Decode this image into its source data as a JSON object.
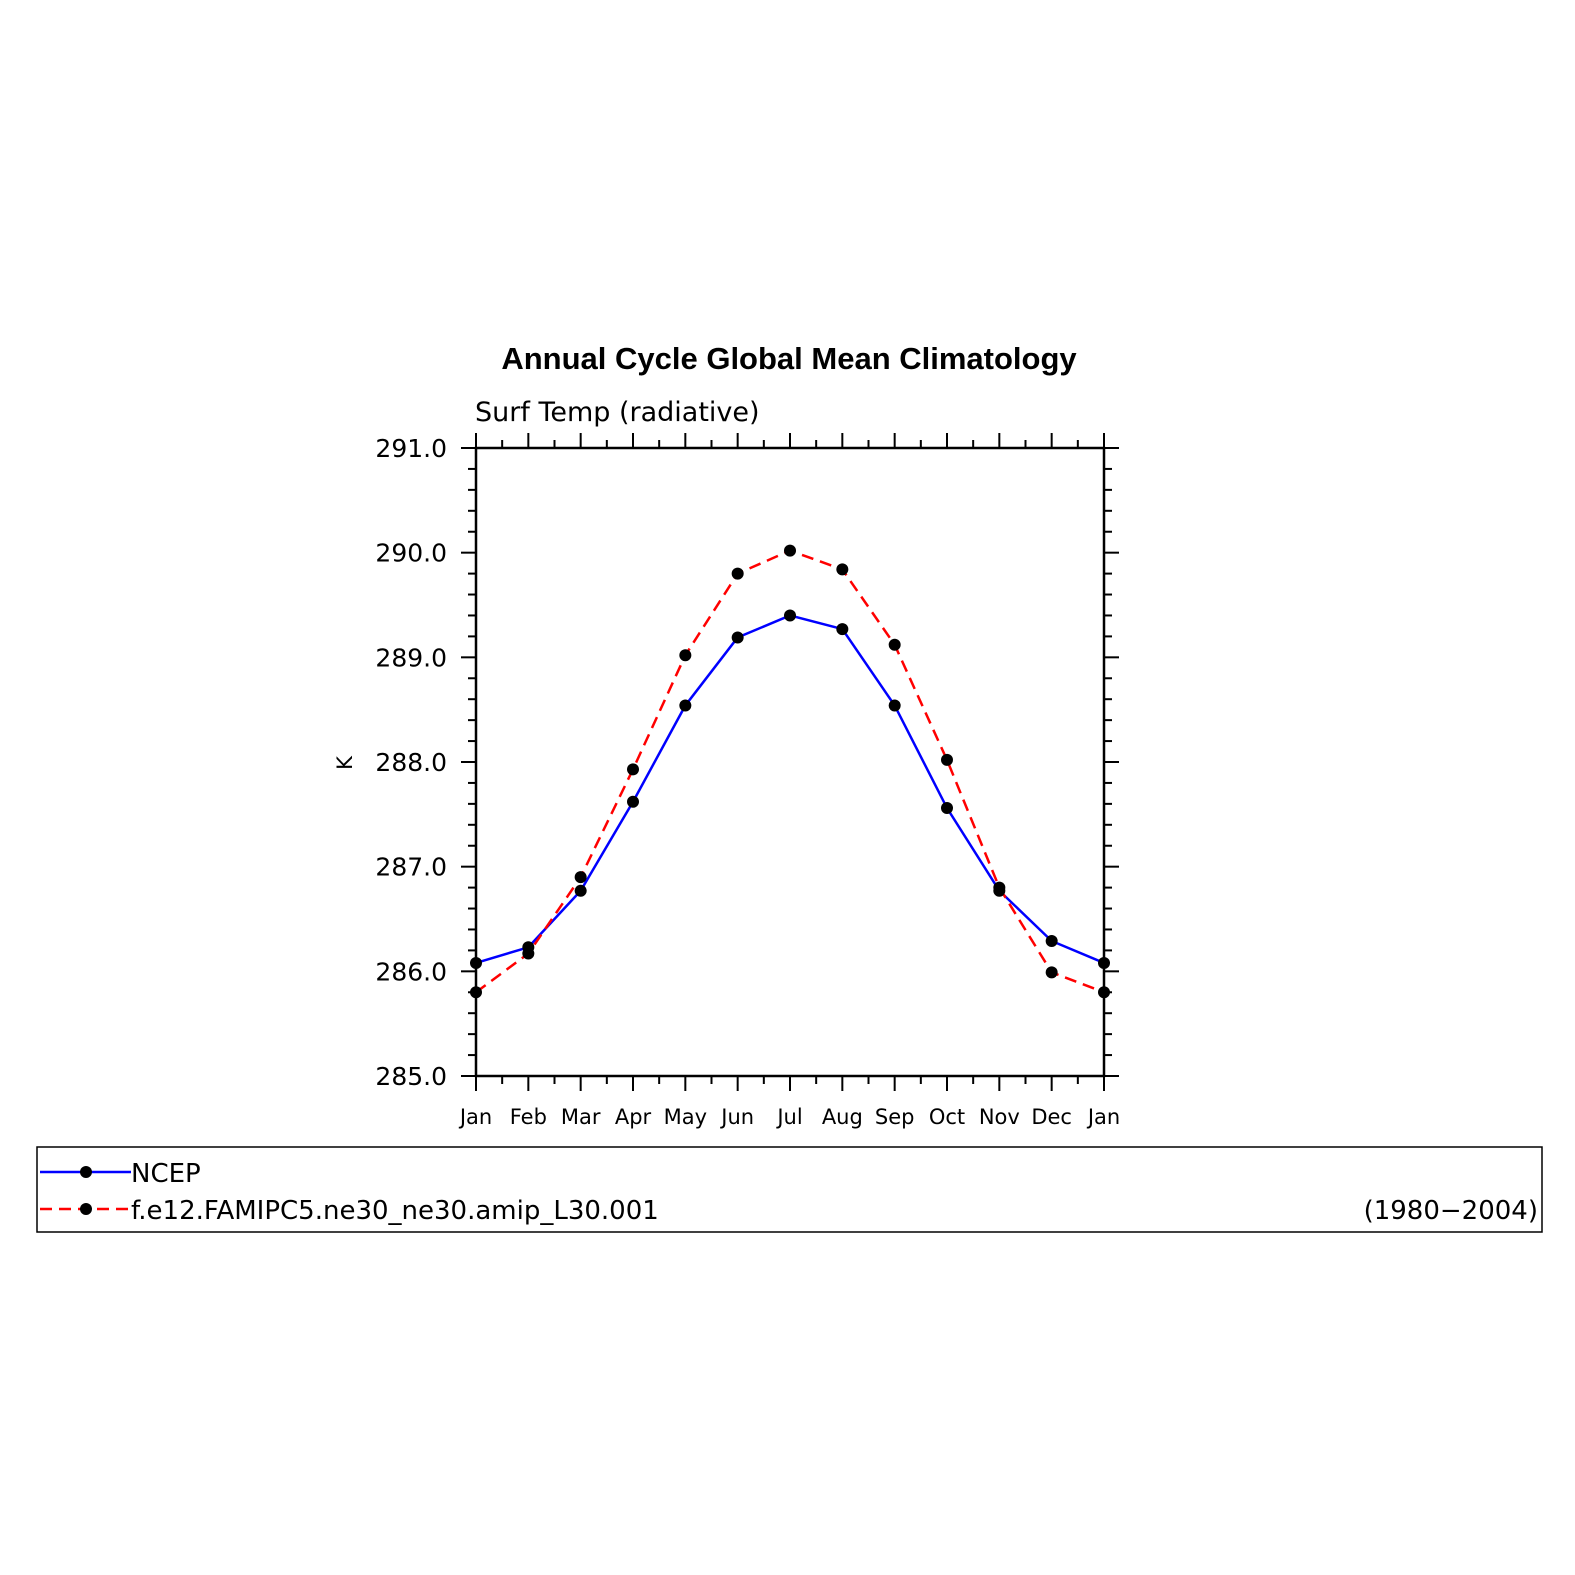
{
  "chart_data": {
    "type": "line",
    "title": "Annual Cycle Global Mean Climatology",
    "subtitle": "Surf Temp (radiative)",
    "ylabel": "K",
    "xlabel": "",
    "categories": [
      "Jan",
      "Feb",
      "Mar",
      "Apr",
      "May",
      "Jun",
      "Jul",
      "Aug",
      "Sep",
      "Oct",
      "Nov",
      "Dec",
      "Jan"
    ],
    "ylim": [
      285.0,
      291.0
    ],
    "yticks": [
      "291.0",
      "290.0",
      "289.0",
      "288.0",
      "287.0",
      "286.0",
      "285.0"
    ],
    "yticks_values": [
      291,
      290,
      289,
      288,
      287,
      286,
      285
    ],
    "series": [
      {
        "name": "NCEP",
        "color": "#0000ff",
        "dash": "solid",
        "values": [
          286.08,
          286.23,
          286.77,
          287.62,
          288.54,
          289.19,
          289.4,
          289.27,
          288.54,
          287.56,
          286.77,
          286.29,
          286.08
        ]
      },
      {
        "name": "f.e12.FAMIPC5.ne30_ne30.amip_L30.001",
        "color": "#ff0000",
        "dash": "dashed",
        "values": [
          285.8,
          286.17,
          286.9,
          287.93,
          289.02,
          289.8,
          290.02,
          289.84,
          289.12,
          288.02,
          286.8,
          285.99,
          285.8
        ]
      }
    ],
    "legend_note": "(1980−2004)",
    "legend_position": "bottom",
    "grid": false
  }
}
